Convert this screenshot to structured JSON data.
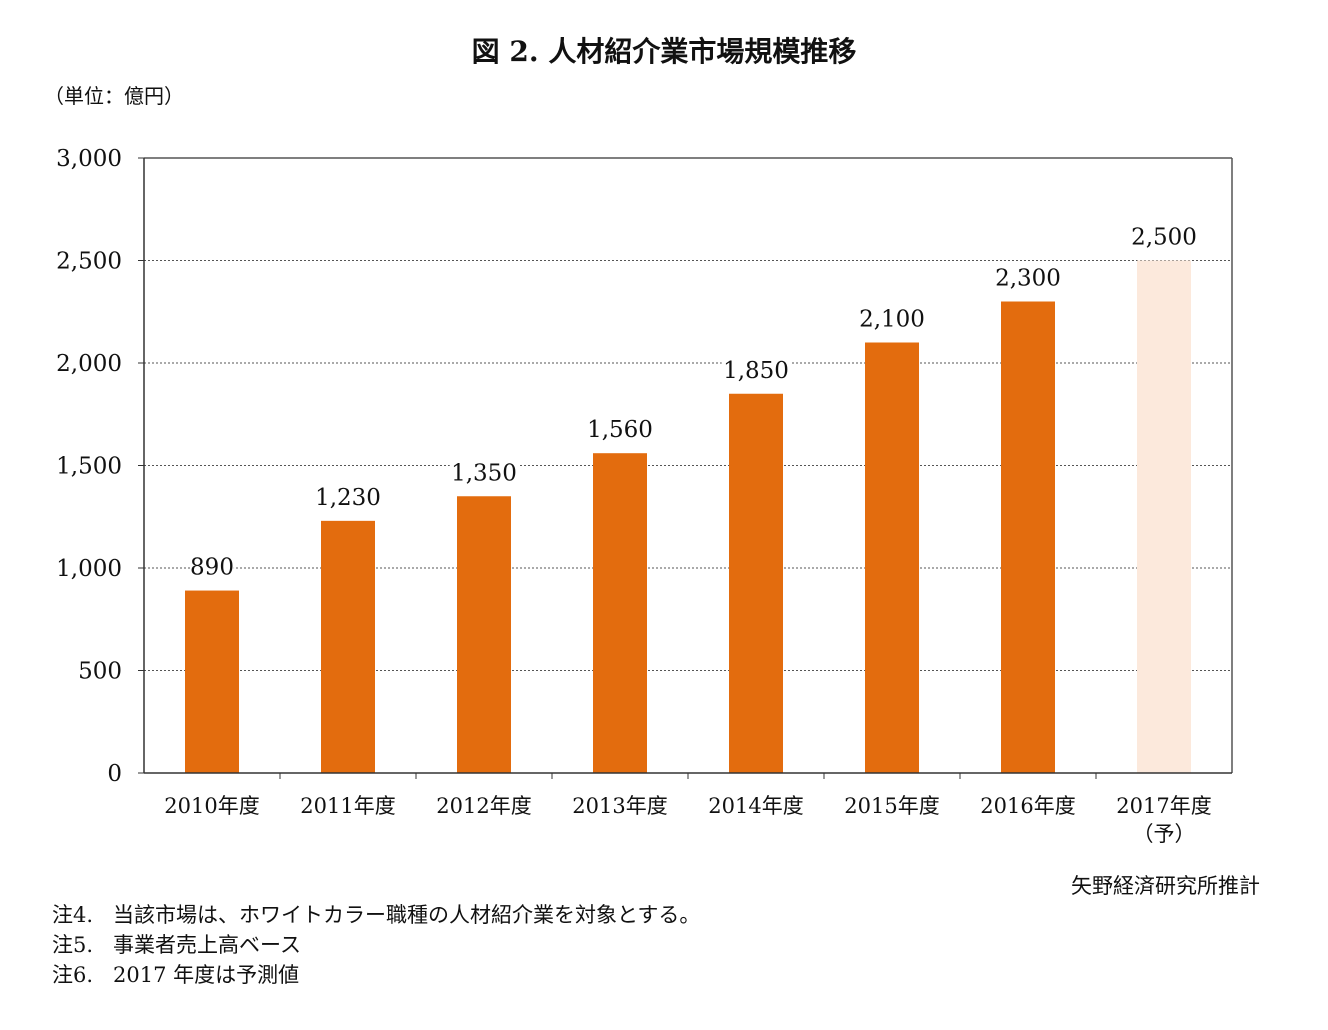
{
  "title": "図 2.  人材紹介業市場規模推移",
  "unit_label": "（単位：億円）",
  "source": "矢野経済研究所推計",
  "notes": [
    "注4.   当該市場は、ホワイトカラー職種の人材紹介業を対象とする。",
    "注5.   事業者売上高ベース",
    "注6.   2017 年度は予測値"
  ],
  "colors": {
    "bar": "#e36c0e",
    "forecast_bar": "#fce9dc",
    "grid": "#555555",
    "axis": "#333333"
  },
  "chart_data": {
    "type": "bar",
    "title": "図 2.  人材紹介業市場規模推移",
    "ylabel": "（単位：億円）",
    "ylim": [
      0,
      3000
    ],
    "yticks": [
      0,
      500,
      1000,
      1500,
      2000,
      2500,
      3000
    ],
    "ytick_labels": [
      "0",
      "500",
      "1,000",
      "1,500",
      "2,000",
      "2,500",
      "3,000"
    ],
    "grid": "horizontal dotted",
    "categories": [
      "2010年度",
      "2011年度",
      "2012年度",
      "2013年度",
      "2014年度",
      "2015年度",
      "2016年度",
      "2017年度\n（予）"
    ],
    "values": [
      890,
      1230,
      1350,
      1560,
      1850,
      2100,
      2300,
      2500
    ],
    "value_labels": [
      "890",
      "1,230",
      "1,350",
      "1,560",
      "1,850",
      "2,100",
      "2,300",
      "2,500"
    ],
    "forecast": [
      false,
      false,
      false,
      false,
      false,
      false,
      false,
      true
    ]
  }
}
